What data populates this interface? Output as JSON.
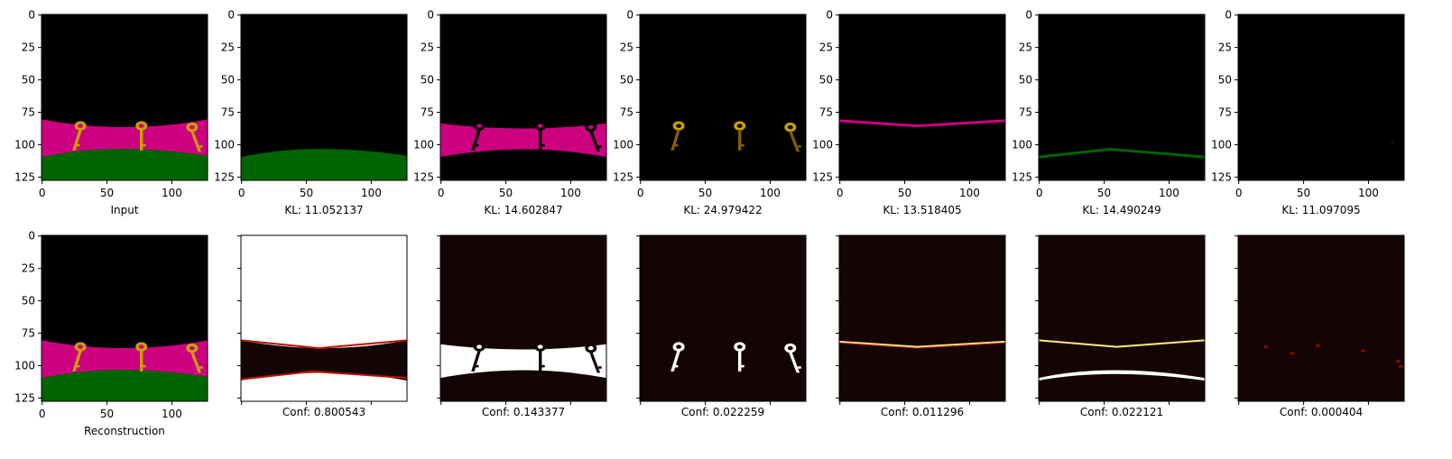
{
  "chart_data": {
    "type": "heatmap",
    "grid": "off",
    "image_size": [
      128,
      128
    ],
    "xticks": [
      0,
      50,
      100
    ],
    "yticks": [
      0,
      25,
      50,
      75,
      100,
      125
    ],
    "rows": [
      {
        "row": "top",
        "panels": [
          {
            "id": "input",
            "label": "Input",
            "show_yticklabels": true,
            "show_xticklabels": true
          },
          {
            "id": "slot1",
            "label": "KL: 11.052137",
            "kl": 11.052137,
            "show_yticklabels": true,
            "show_xticklabels": true
          },
          {
            "id": "slot2",
            "label": "KL: 14.602847",
            "kl": 14.602847,
            "show_yticklabels": true,
            "show_xticklabels": true
          },
          {
            "id": "slot3",
            "label": "KL: 24.979422",
            "kl": 24.979422,
            "show_yticklabels": true,
            "show_xticklabels": true
          },
          {
            "id": "slot4",
            "label": "KL: 13.518405",
            "kl": 13.518405,
            "show_yticklabels": true,
            "show_xticklabels": true
          },
          {
            "id": "slot5",
            "label": "KL: 14.490249",
            "kl": 14.490249,
            "show_yticklabels": true,
            "show_xticklabels": true
          },
          {
            "id": "slot6",
            "label": "KL: 11.097095",
            "kl": 11.097095,
            "show_yticklabels": true,
            "show_xticklabels": true
          }
        ]
      },
      {
        "row": "bottom",
        "panels": [
          {
            "id": "reconstruction",
            "label": "Reconstruction",
            "show_yticklabels": true,
            "show_xticklabels": true
          },
          {
            "id": "conf1",
            "label": "Conf: 0.800543",
            "conf": 0.800543,
            "show_yticklabels": false,
            "show_xticklabels": false
          },
          {
            "id": "conf2",
            "label": "Conf: 0.143377",
            "conf": 0.143377,
            "show_yticklabels": false,
            "show_xticklabels": false
          },
          {
            "id": "conf3",
            "label": "Conf: 0.022259",
            "conf": 0.022259,
            "show_yticklabels": false,
            "show_xticklabels": false
          },
          {
            "id": "conf4",
            "label": "Conf: 0.011296",
            "conf": 0.011296,
            "show_yticklabels": false,
            "show_xticklabels": false
          },
          {
            "id": "conf5",
            "label": "Conf: 0.022121",
            "conf": 0.022121,
            "show_yticklabels": false,
            "show_xticklabels": false
          },
          {
            "id": "conf6",
            "label": "Conf: 0.000404",
            "conf": 0.000404,
            "show_yticklabels": false,
            "show_xticklabels": false
          }
        ]
      }
    ],
    "colors": {
      "background": "#000000",
      "pink_floor": "#cc0080",
      "green_ground": "#006400",
      "key_gold": "#c8a000",
      "key_dark": "#806000",
      "heat_white": "#ffffff",
      "heat_yellow": "#ffe680",
      "heat_red": "#c01000",
      "heat_dark": "#140404"
    }
  }
}
